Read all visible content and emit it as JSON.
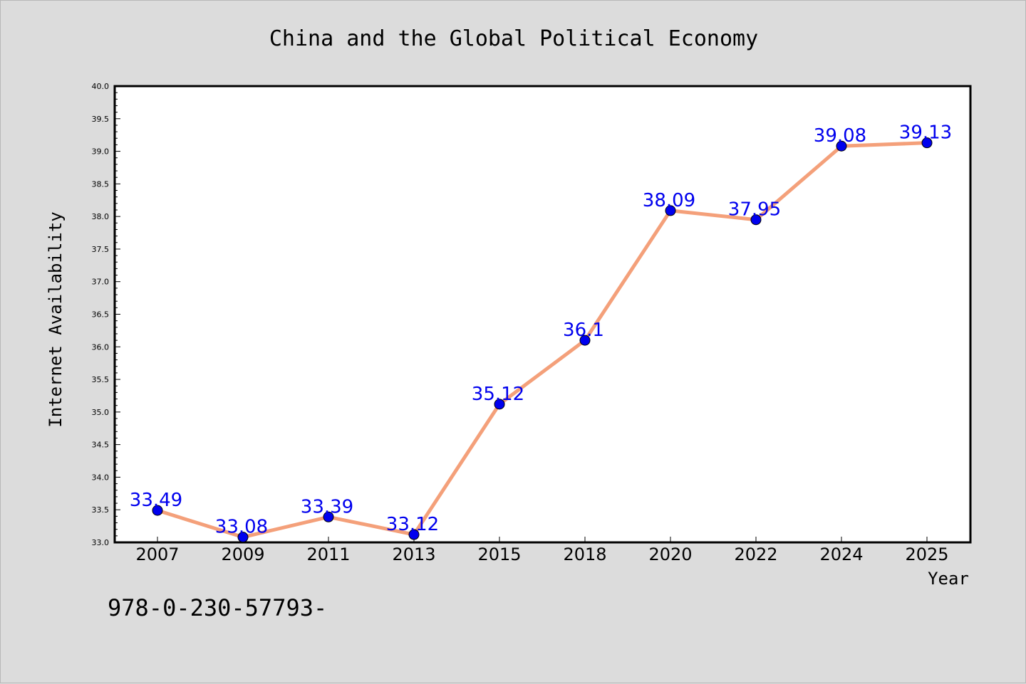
{
  "chart_data": {
    "type": "line",
    "title": "China and the Global Political Economy",
    "xlabel": "Year",
    "ylabel": "Internet Availability",
    "categories": [
      "2007",
      "2009",
      "2011",
      "2013",
      "2015",
      "2018",
      "2020",
      "2022",
      "2024",
      "2025"
    ],
    "series": [
      {
        "values": [
          33.49,
          33.08,
          33.39,
          33.12,
          35.12,
          36.1,
          38.09,
          37.95,
          39.08,
          39.13
        ],
        "labels": [
          "33.49",
          "33.08",
          "33.39",
          "33.12",
          "35.12",
          "36.1",
          "38.09",
          "37.95",
          "39.08",
          "39.13"
        ],
        "line_color": "#f4a07a",
        "marker_color": "#0000ee"
      }
    ],
    "ylim": [
      33.0,
      40.0
    ],
    "yticks": [
      "33.0",
      "33.5",
      "34.0",
      "34.5",
      "35.0",
      "35.5",
      "36.0",
      "36.5",
      "37.0",
      "37.5",
      "38.0",
      "38.5",
      "39.0",
      "39.5",
      "40.0"
    ],
    "grid": false,
    "legend": "none",
    "footnote": "978-0-230-57793-"
  }
}
